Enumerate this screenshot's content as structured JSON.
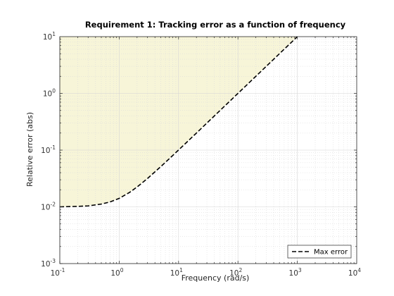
{
  "chart_data": {
    "type": "line",
    "title": "Requirement 1: Tracking error as a function of frequency",
    "xlabel": "Frequency (rad/s)",
    "ylabel": "Relative error (abs)",
    "xscale": "log",
    "yscale": "log",
    "xlim": [
      0.1,
      10000
    ],
    "ylim": [
      0.001,
      10
    ],
    "x_ticks": [
      {
        "base": "10",
        "exp": "-1",
        "value": 0.1
      },
      {
        "base": "10",
        "exp": "0",
        "value": 1
      },
      {
        "base": "10",
        "exp": "1",
        "value": 10
      },
      {
        "base": "10",
        "exp": "2",
        "value": 100
      },
      {
        "base": "10",
        "exp": "3",
        "value": 1000
      },
      {
        "base": "10",
        "exp": "4",
        "value": 10000
      }
    ],
    "y_ticks": [
      {
        "base": "10",
        "exp": "-3",
        "value": 0.001
      },
      {
        "base": "10",
        "exp": "-2",
        "value": 0.01
      },
      {
        "base": "10",
        "exp": "-1",
        "value": 0.1
      },
      {
        "base": "10",
        "exp": "0",
        "value": 1
      },
      {
        "base": "10",
        "exp": "1",
        "value": 10
      }
    ],
    "grid": true,
    "minor_grid": true,
    "legend_position": "bottom-right",
    "shaded_region_color": "#f7f5d8",
    "series": [
      {
        "name": "Max error",
        "style": "dashed",
        "color": "#000000",
        "x": [
          0.1,
          0.2,
          0.3,
          0.5,
          0.7,
          1,
          1.5,
          2,
          3,
          5,
          7,
          10,
          20,
          30,
          50,
          100,
          200,
          300,
          500,
          1000
        ],
        "y": [
          0.01,
          0.0102,
          0.0104,
          0.0112,
          0.0122,
          0.0141,
          0.018,
          0.0224,
          0.0316,
          0.051,
          0.0707,
          0.1005,
          0.2,
          0.3,
          0.5,
          1.0,
          2.0,
          3.0,
          5.0,
          10.0
        ]
      }
    ]
  }
}
